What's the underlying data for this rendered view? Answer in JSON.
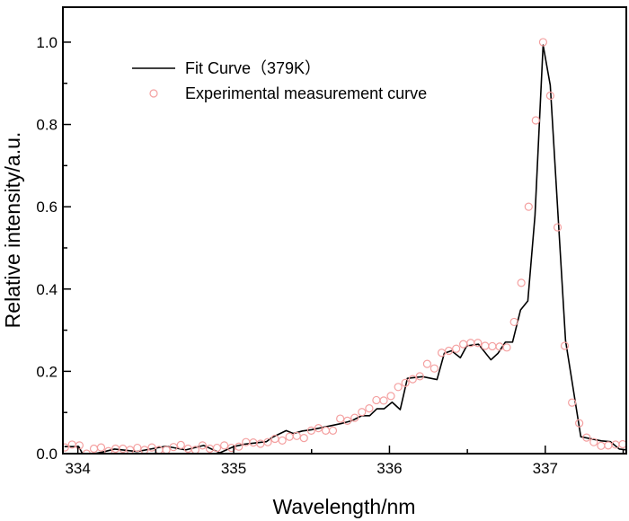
{
  "chart_data": {
    "type": "line",
    "title": "",
    "xlabel": "Wavelength/nm",
    "ylabel": "Relative intensity/a.u.",
    "xlim": [
      333.904,
      337.52
    ],
    "ylim": [
      0,
      1.085
    ],
    "xticks": [
      334,
      335,
      336,
      337
    ],
    "xtick_labels": [
      "334",
      "335",
      "336",
      "337"
    ],
    "yticks": [
      0,
      0.2,
      0.4,
      0.6,
      0.8,
      1.0
    ],
    "ytick_labels": [
      "0.0",
      "0.2",
      "0.4",
      "0.6",
      "0.8",
      "1.0"
    ],
    "grid": false,
    "legend_position": "top-left",
    "series": [
      {
        "name": "Fit Curve（379K）",
        "style": "line",
        "color": "#000000",
        "x": [
          333.914,
          334.006,
          334.029,
          334.104,
          334.161,
          334.236,
          334.38,
          334.565,
          334.692,
          334.807,
          334.911,
          335.0,
          335.072,
          335.21,
          335.245,
          335.337,
          335.383,
          335.441,
          335.499,
          335.689,
          335.758,
          335.821,
          335.873,
          335.919,
          335.965,
          336.017,
          336.069,
          336.115,
          336.213,
          336.305,
          336.352,
          336.398,
          336.455,
          336.496,
          336.571,
          336.651,
          336.697,
          336.744,
          336.79,
          336.841,
          336.888,
          336.934,
          336.986,
          337.032,
          337.13,
          337.228,
          337.36,
          337.418,
          337.476,
          337.522
        ],
        "y": [
          0.017,
          0.017,
          0.0,
          0.0,
          0.004,
          0.011,
          0.005,
          0.018,
          0.009,
          0.02,
          0.002,
          0.017,
          0.023,
          0.029,
          0.039,
          0.056,
          0.049,
          0.055,
          0.058,
          0.073,
          0.08,
          0.092,
          0.092,
          0.109,
          0.109,
          0.125,
          0.107,
          0.183,
          0.187,
          0.18,
          0.244,
          0.25,
          0.233,
          0.262,
          0.266,
          0.228,
          0.244,
          0.271,
          0.271,
          0.349,
          0.371,
          0.579,
          0.993,
          0.895,
          0.275,
          0.041,
          0.031,
          0.029,
          0.011,
          0.009
        ]
      },
      {
        "name": "Experimental measurement curve",
        "style": "open-circle",
        "color": "#f08080",
        "x": [
          333.87,
          333.917,
          333.963,
          334.01,
          334.056,
          334.103,
          334.149,
          334.196,
          334.242,
          334.289,
          334.335,
          334.382,
          334.428,
          334.475,
          334.521,
          334.568,
          334.614,
          334.661,
          334.707,
          334.754,
          334.8,
          334.847,
          334.893,
          334.94,
          334.986,
          335.033,
          335.079,
          335.126,
          335.172,
          335.219,
          335.265,
          335.312,
          335.358,
          335.405,
          335.451,
          335.498,
          335.544,
          335.591,
          335.637,
          335.684,
          335.73,
          335.777,
          335.823,
          335.87,
          335.916,
          335.963,
          336.009,
          336.056,
          336.102,
          336.149,
          336.195,
          336.242,
          336.288,
          336.335,
          336.381,
          336.428,
          336.474,
          336.521,
          336.567,
          336.614,
          336.66,
          336.707,
          336.753,
          336.8,
          336.846,
          336.893,
          336.939,
          336.986,
          337.032,
          337.079,
          337.125,
          337.172,
          337.218,
          337.265,
          337.311,
          337.358,
          337.404,
          337.451,
          337.497
        ],
        "y": [
          0.015,
          0.015,
          0.022,
          0.02,
          0.0,
          0.012,
          0.015,
          0.006,
          0.012,
          0.012,
          0.009,
          0.014,
          0.009,
          0.015,
          0.009,
          0.009,
          0.016,
          0.021,
          0.012,
          0.009,
          0.02,
          0.012,
          0.014,
          0.02,
          0.014,
          0.017,
          0.028,
          0.027,
          0.024,
          0.028,
          0.036,
          0.032,
          0.041,
          0.043,
          0.038,
          0.056,
          0.062,
          0.056,
          0.056,
          0.085,
          0.08,
          0.087,
          0.101,
          0.11,
          0.13,
          0.129,
          0.14,
          0.162,
          0.172,
          0.181,
          0.188,
          0.218,
          0.207,
          0.245,
          0.25,
          0.255,
          0.266,
          0.269,
          0.269,
          0.262,
          0.261,
          0.26,
          0.258,
          0.32,
          0.415,
          0.6,
          0.81,
          1.0,
          0.87,
          0.55,
          0.262,
          0.124,
          0.074,
          0.039,
          0.028,
          0.019,
          0.02,
          0.022,
          0.023
        ]
      }
    ]
  }
}
